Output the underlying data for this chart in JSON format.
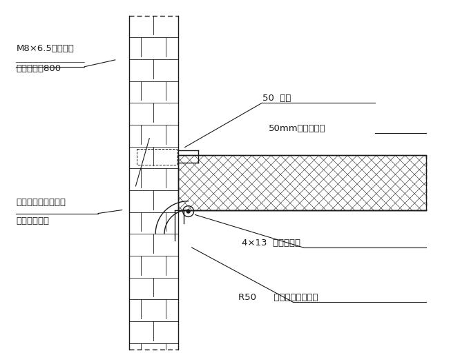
{
  "bg_color": "#ffffff",
  "line_color": "#1a1a1a",
  "labels": {
    "bolt": "M8×6.5膨胀螺栓",
    "spacing": "间距不大于800",
    "channel": "50  槽铝",
    "panel_text": "50mm岩棉彩锂板",
    "joint": "槽铝与土建墙交接处",
    "sealant": "用密封胶密封",
    "rivet": "4×13  抝芯铝铆钉",
    "corner": "R50      铝合金阴角及底料"
  }
}
